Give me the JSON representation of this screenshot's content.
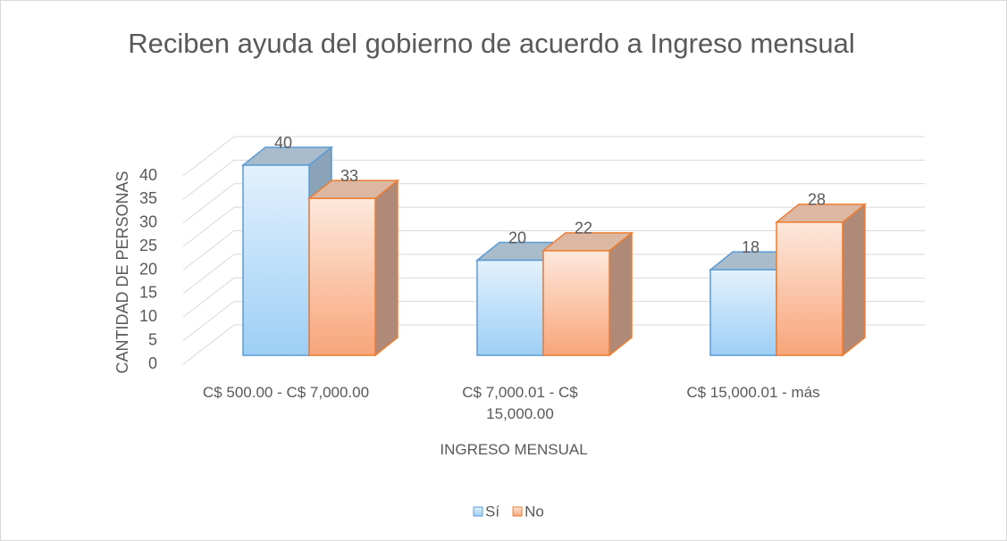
{
  "chart_data": {
    "type": "bar3d",
    "title": "Reciben ayuda del gobierno de acuerdo a Ingreso mensual",
    "x_label": "INGRESO MENSUAL",
    "y_label": "CANTIDAD DE PERSONAS",
    "categories": [
      "C$ 500.00 - C$ 7,000.00",
      "C$ 7,000.01 - C$ 15,000.00",
      "C$ 15,000.01 - más"
    ],
    "series": [
      {
        "name": "Sí",
        "color": "#9dcff6",
        "values": [
          40,
          20,
          18
        ]
      },
      {
        "name": "No",
        "color": "#f8a57a",
        "values": [
          33,
          22,
          28
        ]
      }
    ],
    "ylim": [
      0,
      40
    ],
    "yticks": [
      0,
      5,
      10,
      15,
      20,
      25,
      30,
      35,
      40
    ],
    "grid": true,
    "legend": "bottom"
  }
}
